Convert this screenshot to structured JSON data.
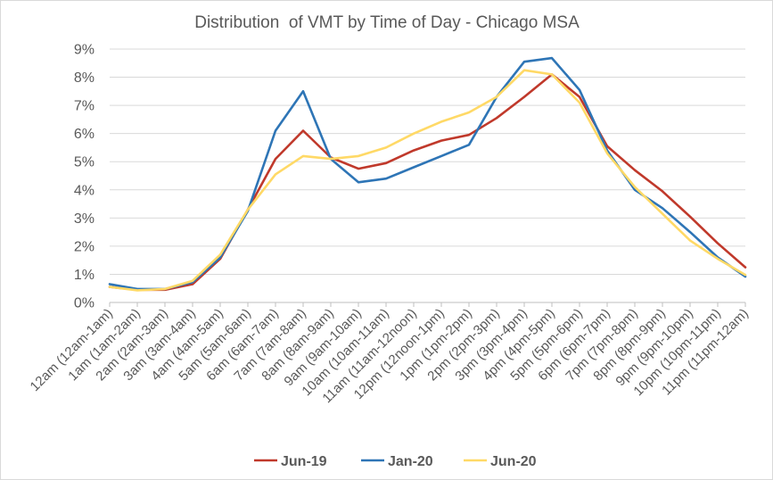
{
  "chart_data": {
    "type": "line",
    "title": "Distribution  of VMT by Time of Day - Chicago MSA",
    "xlabel": "",
    "ylabel": "",
    "ylim": [
      0,
      9
    ],
    "y_ticks": [
      "0%",
      "1%",
      "2%",
      "3%",
      "4%",
      "5%",
      "6%",
      "7%",
      "8%",
      "9%"
    ],
    "grid": "horizontal",
    "legend_position": "bottom",
    "categories": [
      "12am (12am-1am)",
      "1am (1am-2am)",
      "2am (2am-3am)",
      "3am (3am-4am)",
      "4am (4am-5am)",
      "5am (5am-6am)",
      "6am (6am-7am)",
      "7am (7am-8am)",
      "8am (8am-9am)",
      "9am (9am-10am)",
      "10am (10am-11am)",
      "11am (11am-12noon)",
      "12pm (12noon-1pm)",
      "1pm (1pm-2pm)",
      "2pm (2pm-3pm)",
      "3pm (3pm-4pm)",
      "4pm (4pm-5pm)",
      "5pm (5pm-6pm)",
      "6pm (6pm-7pm)",
      "7pm (7pm-8pm)",
      "8pm (8pm-9pm)",
      "9pm (9pm-10pm)",
      "10pm (10pm-11pm)",
      "11pm (11pm-12am)"
    ],
    "series": [
      {
        "name": "Jun-19",
        "color": "#c0392b",
        "values": [
          0.55,
          0.45,
          0.45,
          0.65,
          1.55,
          3.3,
          5.1,
          6.1,
          5.15,
          4.75,
          4.95,
          5.4,
          5.75,
          5.95,
          6.55,
          7.3,
          8.1,
          7.3,
          5.55,
          4.7,
          3.95,
          3.05,
          2.1,
          1.25
        ]
      },
      {
        "name": "Jan-20",
        "color": "#2e75b6",
        "values": [
          0.65,
          0.48,
          0.48,
          0.72,
          1.6,
          3.25,
          6.1,
          7.5,
          5.1,
          4.27,
          4.4,
          4.8,
          5.2,
          5.6,
          7.3,
          8.55,
          8.68,
          7.55,
          5.4,
          4.0,
          3.35,
          2.5,
          1.6,
          0.92
        ]
      },
      {
        "name": "Jun-20",
        "color": "#ffd966",
        "values": [
          0.55,
          0.43,
          0.48,
          0.77,
          1.7,
          3.3,
          4.55,
          5.2,
          5.1,
          5.2,
          5.5,
          6.0,
          6.42,
          6.75,
          7.3,
          8.25,
          8.1,
          7.1,
          5.3,
          4.1,
          3.15,
          2.2,
          1.55,
          0.98
        ]
      }
    ]
  }
}
